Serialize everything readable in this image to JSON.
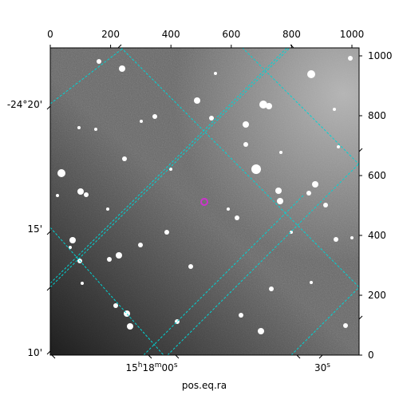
{
  "figure": {
    "xlabel": "pos.eq.ra",
    "pixel_ticks": {
      "top": [
        "0",
        "200",
        "400",
        "600",
        "800",
        "1000"
      ],
      "right": [
        "0",
        "200",
        "400",
        "600",
        "800",
        "1000"
      ]
    },
    "ra_ticks": [
      {
        "hms": "15",
        "h": "h",
        "m": "18",
        "mm": "m",
        "s": "00",
        "ss": "s"
      },
      {
        "s": "30",
        "ss": "s"
      }
    ],
    "dec_ticks": [
      "-24°20'",
      "15'",
      "10'"
    ]
  },
  "colors": {
    "grid": "#00d4d4",
    "marker": "#cc33cc",
    "background": "#6b6b6b"
  },
  "image": {
    "description_icon": "star-field-image",
    "pixel_range": [
      0,
      1024
    ]
  }
}
